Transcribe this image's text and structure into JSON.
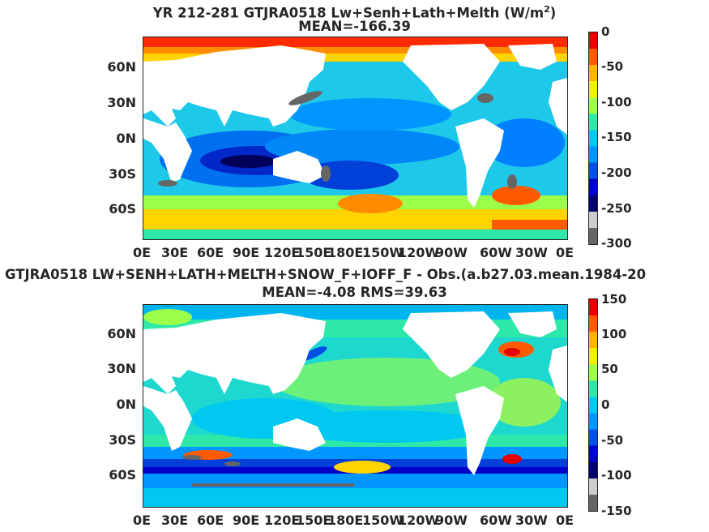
{
  "panels": [
    {
      "title_main": "YR 212-281 GTJRA0518 Lw+Senh+Lath+Melth (W/m",
      "title_sup": "2",
      "title_end": ")",
      "subtitle": "MEAN=-166.39",
      "lat_labels": [
        "60N",
        "30N",
        "0N",
        "30S",
        "60S"
      ],
      "lon_labels": [
        "0E",
        "30E",
        "60E",
        "90E",
        "120E",
        "150E",
        "180E",
        "150W",
        "120W",
        "90W",
        "60W",
        "30W",
        "0E"
      ],
      "colorbar": {
        "ticks": [
          "0",
          "-50",
          "-100",
          "-150",
          "-200",
          "-250",
          "-300"
        ],
        "range": [
          -300,
          0
        ],
        "colors": [
          "#e60000",
          "#ff5a00",
          "#ffb300",
          "#f0f000",
          "#9cff4a",
          "#2ee8a8",
          "#00c8f0",
          "#0096ff",
          "#0050e6",
          "#0000c8",
          "#00006e",
          "#cccccc",
          "#666666"
        ]
      }
    },
    {
      "title_main": "GTJRA0518 LW+SENH+LATH+MELTH+SNOW_F+IOFF_F - Obs.(a.b27.03.mean.1984-20",
      "title_sup": "",
      "title_end": "",
      "subtitle": "MEAN=-4.08 RMS=39.63",
      "lat_labels": [
        "60N",
        "30N",
        "0N",
        "30S",
        "60S"
      ],
      "lon_labels": [
        "0E",
        "30E",
        "60E",
        "90E",
        "120E",
        "150E",
        "180E",
        "150W",
        "120W",
        "90W",
        "60W",
        "30W",
        "0E"
      ],
      "colorbar": {
        "ticks": [
          "150",
          "100",
          "50",
          "0",
          "-50",
          "-100",
          "-150"
        ],
        "range": [
          -150,
          150
        ],
        "colors": [
          "#e60000",
          "#ff5a00",
          "#ffb300",
          "#f0f000",
          "#9cff4a",
          "#2ee8a8",
          "#00c8f0",
          "#0096ff",
          "#0050e6",
          "#0000c8",
          "#00006e",
          "#cccccc",
          "#666666"
        ]
      }
    }
  ]
}
